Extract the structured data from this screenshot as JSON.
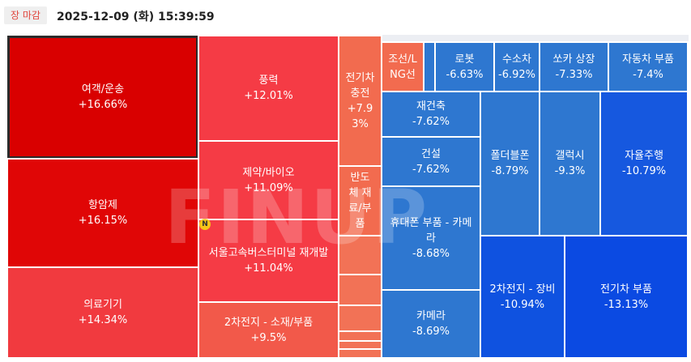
{
  "status_badge": "장 마감",
  "timestamp": "2025-12-09 (화) 15:39:59",
  "watermark": "FINUP",
  "new_marker": "N",
  "colors": {
    "strong_red": "#d90000",
    "red": "#f0414d",
    "orange_red": "#f2694e",
    "blue": "#2e77d0",
    "deep_blue": "#0e4fe0"
  },
  "tiles": [
    {
      "label": "여객/운송",
      "pct": "+16.66%"
    },
    {
      "label": "항암제",
      "pct": "+16.15%"
    },
    {
      "label": "의료기기",
      "pct": "+14.34%"
    },
    {
      "label": "풍력",
      "pct": "+12.01%"
    },
    {
      "label": "제약/바이오",
      "pct": "+11.09%"
    },
    {
      "label": "서울고속버스터미널 재개발",
      "pct": "+11.04%"
    },
    {
      "label": "2차전지 - 소재/부품",
      "pct": "+9.5%"
    },
    {
      "label": "전기차 충전",
      "pct": "+7.93%"
    },
    {
      "label": "반도체 재료/부품",
      "pct": ""
    },
    {
      "label": "조선/LNG선",
      "pct": ""
    },
    {
      "label": "로봇",
      "pct": "-6.63%"
    },
    {
      "label": "수소차",
      "pct": "-6.92%"
    },
    {
      "label": "쏘카 상장",
      "pct": "-7.33%"
    },
    {
      "label": "자동차 부품",
      "pct": "-7.4%"
    },
    {
      "label": "재건축",
      "pct": "-7.62%"
    },
    {
      "label": "건설",
      "pct": "-7.62%"
    },
    {
      "label": "휴대폰 부품 - 카메라",
      "pct": "-8.68%"
    },
    {
      "label": "카메라",
      "pct": "-8.69%"
    },
    {
      "label": "폴더블폰",
      "pct": "-8.79%"
    },
    {
      "label": "갤럭시",
      "pct": "-9.3%"
    },
    {
      "label": "자율주행",
      "pct": "-10.79%"
    },
    {
      "label": "2차전지 - 장비",
      "pct": "-10.94%"
    },
    {
      "label": "전기차 부품",
      "pct": "-13.13%"
    }
  ]
}
